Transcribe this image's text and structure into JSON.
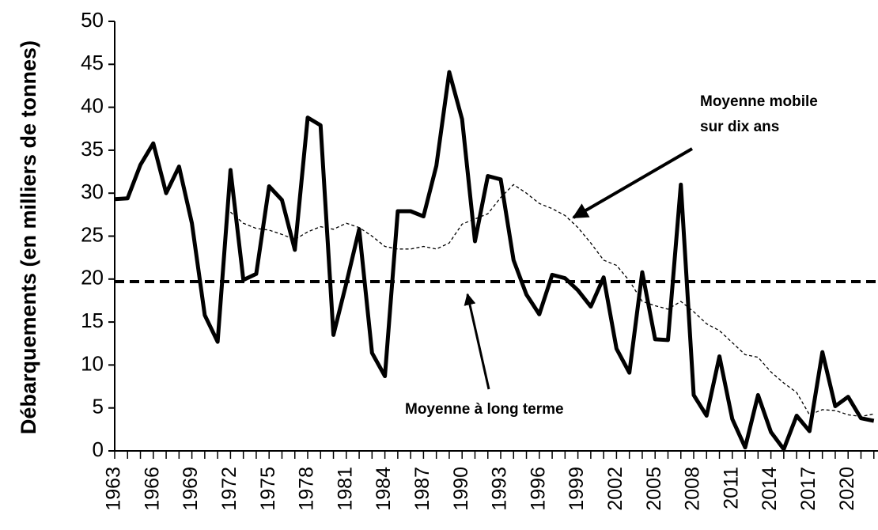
{
  "chart_data": {
    "type": "line",
    "y_label": "Débarquements (en milliers de tonnes)",
    "x": [
      1963,
      1964,
      1965,
      1966,
      1967,
      1968,
      1969,
      1970,
      1971,
      1972,
      1973,
      1974,
      1975,
      1976,
      1977,
      1978,
      1979,
      1980,
      1981,
      1982,
      1983,
      1984,
      1985,
      1986,
      1987,
      1988,
      1989,
      1990,
      1991,
      1992,
      1993,
      1994,
      1995,
      1996,
      1997,
      1998,
      1999,
      2000,
      2001,
      2002,
      2003,
      2004,
      2005,
      2006,
      2007,
      2008,
      2009,
      2010,
      2011,
      2012,
      2013,
      2014,
      2015,
      2016,
      2017,
      2018,
      2019,
      2020,
      2021,
      2022
    ],
    "series": [
      {
        "color": "#000000",
        "values": [
          29.3,
          29.4,
          33.3,
          35.8,
          30,
          33.1,
          26.5,
          15.8,
          12.7,
          32.7,
          19.9,
          20.6,
          30.8,
          29.2,
          23.4,
          38.8,
          37.9,
          13.5,
          19.5,
          25.8,
          11.4,
          8.7,
          27.9,
          27.9,
          27.3,
          33.2,
          44.1,
          38.6,
          24.4,
          32,
          31.6,
          22.2,
          18.2,
          15.9,
          20.5,
          20.1,
          18.7,
          16.8,
          20.2,
          11.9,
          9.1,
          20.8,
          13,
          12.9,
          31,
          6.5,
          4.1,
          11,
          3.7,
          0.4,
          6.5,
          2.2,
          0.2,
          4.1,
          2.3,
          11.5,
          5.2,
          6.3,
          3.8,
          3.5
        ]
      },
      {
        "color": "#000000",
        "dashed": true,
        "values": [
          null,
          null,
          null,
          null,
          null,
          null,
          null,
          null,
          null,
          27.8,
          26.5,
          25.9,
          25.7,
          25.2,
          24.6,
          25.5,
          26.1,
          25.8,
          26.5,
          26,
          25,
          23.8,
          23.5,
          23.5,
          23.8,
          23.5,
          24.2,
          26.4,
          27,
          27.6,
          29.5,
          31,
          30,
          28.8,
          28.2,
          27.4,
          26,
          24.2,
          22.2,
          21.6,
          19.8,
          17.4,
          16.9,
          16.5,
          17.4,
          16.2,
          14.8,
          14,
          12.6,
          11.2,
          10.9,
          9.2,
          7.9,
          6.8,
          4.2,
          4.8,
          4.7,
          4.2,
          4,
          4.3
        ]
      }
    ],
    "reference_line": 19.7,
    "annotations": [
      {
        "lines": [
          "Moyenne mobile",
          "sur dix ans"
        ]
      },
      {
        "lines": [
          "Moyenne à long terme"
        ]
      }
    ],
    "xlim": [
      1963,
      2022.2
    ],
    "xticks": [
      1963,
      1966,
      1969,
      1972,
      1975,
      1978,
      1981,
      1984,
      1987,
      1990,
      1993,
      1996,
      1999,
      2002,
      2005,
      2008,
      2011,
      2014,
      2017,
      2020
    ],
    "ylim": [
      0,
      50
    ],
    "yticks": [
      0,
      5,
      10,
      15,
      20,
      25,
      30,
      35,
      40,
      45,
      50
    ]
  }
}
